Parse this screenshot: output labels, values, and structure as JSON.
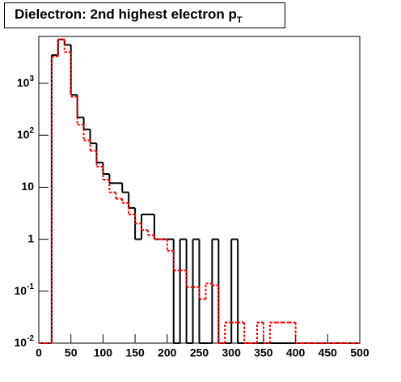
{
  "chart_data": {
    "type": "histogram",
    "title": "Dielectron: 2nd highest electron p",
    "title_subscript": "T",
    "bins": [
      0,
      10,
      20,
      30,
      40,
      50,
      60,
      70,
      80,
      90,
      100,
      110,
      120,
      130,
      140,
      150,
      160,
      170,
      180,
      190,
      200,
      210,
      220,
      230,
      240,
      250,
      260,
      270,
      280,
      290,
      300,
      310,
      320,
      330,
      340,
      350,
      360,
      370,
      380,
      390,
      400,
      410,
      420,
      430,
      440,
      450,
      460,
      470,
      480,
      490,
      500
    ],
    "series": [
      {
        "color": "#000000",
        "style": "solid",
        "values": [
          0,
          0,
          3500,
          7000,
          5500,
          600,
          220,
          130,
          70,
          30,
          18,
          12,
          12,
          8,
          4,
          1,
          3,
          3,
          1,
          1,
          1,
          0,
          1,
          0,
          1,
          0,
          0,
          1,
          0,
          0,
          1,
          0,
          0,
          0,
          0,
          0,
          0,
          0,
          0,
          0,
          0,
          0,
          0,
          0,
          0,
          0,
          0,
          0,
          0,
          0
        ]
      },
      {
        "color": "#ff0000",
        "style": "dotted",
        "values": [
          0,
          0,
          3300,
          7000,
          4000,
          550,
          160,
          80,
          50,
          25,
          14,
          8,
          6,
          5,
          3,
          2,
          1.5,
          1.2,
          1,
          1,
          0.6,
          0.25,
          0.25,
          0.12,
          0.12,
          0.07,
          0.14,
          0.13,
          0.01,
          0.025,
          0.025,
          0.025,
          0.01,
          0.01,
          0.025,
          0.01,
          0.025,
          0.025,
          0.025,
          0.025,
          0.01,
          0.01,
          0.01,
          0.01,
          0.01,
          0.01,
          0.01,
          0.01,
          0.01,
          0.01
        ]
      }
    ],
    "xlim": [
      0,
      500
    ],
    "xticks": [
      0,
      50,
      100,
      150,
      200,
      250,
      300,
      350,
      400,
      450,
      500
    ],
    "ylim": [
      0.01,
      8000
    ],
    "log_y": true,
    "yticks": [
      {
        "value": 0.01,
        "label": "10",
        "exponent": "-2"
      },
      {
        "value": 0.1,
        "label": "10",
        "exponent": "-1"
      },
      1,
      10,
      {
        "value": 100,
        "label": "10",
        "exponent": "2"
      },
      {
        "value": 1000,
        "label": "10",
        "exponent": "3"
      }
    ]
  }
}
